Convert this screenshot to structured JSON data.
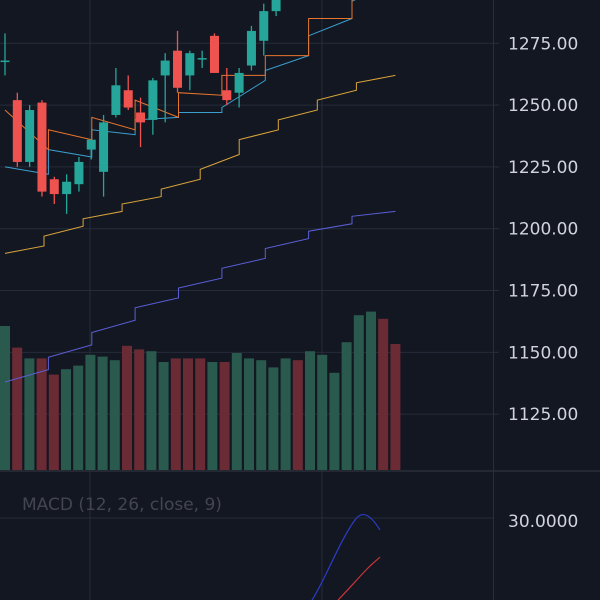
{
  "colors": {
    "background": "#131722",
    "grid": "#262b3a",
    "separator": "#2a2e39",
    "bull": "#26a69a",
    "bear": "#ef5350",
    "vol_bull": "#2a5a4d",
    "vol_bear": "#6b2b35",
    "ma_short": "#e8752e",
    "ma_mid": "#3b9fce",
    "ma_long": "#d9a43a",
    "ma_xlong": "#5b5fd6",
    "macd_line": "#2b3cc9",
    "signal_line": "#c9353a",
    "axis_text": "#d1d4dc"
  },
  "macd_label": "MACD (12, 26, close, 9)",
  "macd_tick": "30.0000",
  "chart_data": {
    "type": "candlestick",
    "y_ticks": [
      "1275.00",
      "1250.00",
      "1225.00",
      "1200.00",
      "1175.00",
      "1150.00",
      "1125.00"
    ],
    "y_tick_values": [
      1275,
      1250,
      1225,
      1200,
      1175,
      1150,
      1125
    ],
    "ylim": [
      1102.4,
      1292.5
    ],
    "candles": [
      {
        "o": 1268,
        "h": 1279,
        "l": 1262,
        "c": 1268
      },
      {
        "o": 1252,
        "h": 1255,
        "l": 1225,
        "c": 1227
      },
      {
        "o": 1227,
        "h": 1250,
        "l": 1225,
        "c": 1248
      },
      {
        "o": 1251,
        "h": 1252,
        "l": 1213,
        "c": 1215
      },
      {
        "o": 1220,
        "h": 1221,
        "l": 1210,
        "c": 1214
      },
      {
        "o": 1214,
        "h": 1222,
        "l": 1206,
        "c": 1219
      },
      {
        "o": 1218,
        "h": 1229,
        "l": 1215,
        "c": 1227
      },
      {
        "o": 1232,
        "h": 1236,
        "l": 1228,
        "c": 1236
      },
      {
        "o": 1223,
        "h": 1246,
        "l": 1213,
        "c": 1243
      },
      {
        "o": 1246,
        "h": 1265,
        "l": 1245,
        "c": 1258
      },
      {
        "o": 1256,
        "h": 1262,
        "l": 1248,
        "c": 1249
      },
      {
        "o": 1247,
        "h": 1253,
        "l": 1233,
        "c": 1243
      },
      {
        "o": 1244,
        "h": 1261,
        "l": 1238,
        "c": 1260
      },
      {
        "o": 1262,
        "h": 1271,
        "l": 1243,
        "c": 1268
      },
      {
        "o": 1272,
        "h": 1280,
        "l": 1255,
        "c": 1257
      },
      {
        "o": 1262,
        "h": 1272,
        "l": 1256,
        "c": 1271
      },
      {
        "o": 1269,
        "h": 1272,
        "l": 1265,
        "c": 1269
      },
      {
        "o": 1278,
        "h": 1279,
        "l": 1263,
        "c": 1263
      },
      {
        "o": 1256,
        "h": 1265,
        "l": 1250,
        "c": 1252
      },
      {
        "o": 1255,
        "h": 1265,
        "l": 1249,
        "c": 1263
      },
      {
        "o": 1266,
        "h": 1282,
        "l": 1264,
        "c": 1280
      },
      {
        "o": 1276,
        "h": 1291,
        "l": 1270,
        "c": 1288
      },
      {
        "o": 1288,
        "h": 1298,
        "l": 1286,
        "c": 1298
      }
    ],
    "ma_short": [
      [
        1248,
        1232
      ],
      [
        1240,
        1236
      ],
      [
        1245,
        1240
      ],
      [
        1252,
        1245
      ],
      [
        1255,
        1254
      ],
      [
        1262,
        1262
      ],
      [
        1270,
        1270
      ],
      [
        1285,
        1285
      ],
      [
        1300,
        1298
      ]
    ],
    "ma_mid": [
      [
        1225,
        1222
      ],
      [
        1232,
        1229
      ],
      [
        1240,
        1238
      ],
      [
        1244,
        1245
      ],
      [
        1247,
        1247
      ],
      [
        1249,
        1260
      ],
      [
        1264,
        1270
      ],
      [
        1278,
        1285
      ],
      [
        1292,
        1300
      ]
    ],
    "ma_long": [
      [
        1190,
        1193
      ],
      [
        1197,
        1201
      ],
      [
        1204,
        1207
      ],
      [
        1210,
        1213
      ],
      [
        1216,
        1220
      ],
      [
        1224,
        1230
      ],
      [
        1236,
        1240
      ],
      [
        1244,
        1248
      ],
      [
        1252,
        1256
      ],
      [
        1259,
        1262
      ]
    ],
    "ma_xlong": [
      [
        1138,
        1143
      ],
      [
        1148,
        1153
      ],
      [
        1158,
        1163
      ],
      [
        1168,
        1172
      ],
      [
        1176,
        1180
      ],
      [
        1184,
        1188
      ],
      [
        1192,
        1196
      ],
      [
        1199,
        1202
      ],
      [
        1205,
        1207
      ]
    ],
    "volume": [
      {
        "v": 0.8,
        "up": true
      },
      {
        "v": 0.68,
        "up": false
      },
      {
        "v": 0.62,
        "up": true
      },
      {
        "v": 0.62,
        "up": false
      },
      {
        "v": 0.53,
        "up": false
      },
      {
        "v": 0.56,
        "up": true
      },
      {
        "v": 0.58,
        "up": true
      },
      {
        "v": 0.64,
        "up": true
      },
      {
        "v": 0.63,
        "up": true
      },
      {
        "v": 0.61,
        "up": true
      },
      {
        "v": 0.69,
        "up": false
      },
      {
        "v": 0.67,
        "up": false
      },
      {
        "v": 0.66,
        "up": true
      },
      {
        "v": 0.6,
        "up": true
      },
      {
        "v": 0.62,
        "up": false
      },
      {
        "v": 0.62,
        "up": false
      },
      {
        "v": 0.62,
        "up": false
      },
      {
        "v": 0.6,
        "up": true
      },
      {
        "v": 0.6,
        "up": false
      },
      {
        "v": 0.65,
        "up": true
      },
      {
        "v": 0.62,
        "up": true
      },
      {
        "v": 0.61,
        "up": true
      },
      {
        "v": 0.57,
        "up": true
      },
      {
        "v": 0.62,
        "up": true
      },
      {
        "v": 0.61,
        "up": false
      },
      {
        "v": 0.66,
        "up": true
      },
      {
        "v": 0.64,
        "up": true
      },
      {
        "v": 0.54,
        "up": true
      },
      {
        "v": 0.71,
        "up": true
      },
      {
        "v": 0.86,
        "up": true
      },
      {
        "v": 0.88,
        "up": true
      },
      {
        "v": 0.84,
        "up": false
      },
      {
        "v": 0.7,
        "up": false
      }
    ]
  }
}
